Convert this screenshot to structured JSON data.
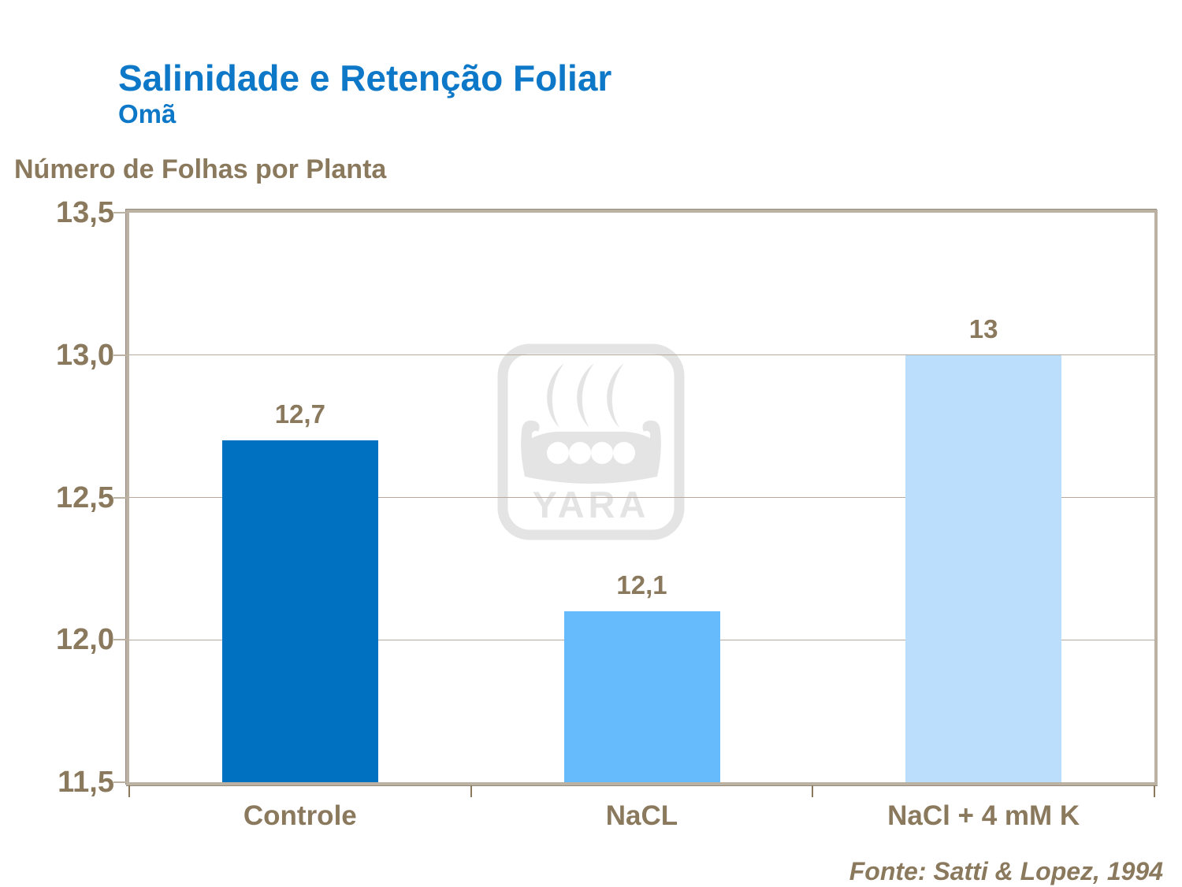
{
  "slide": {
    "title": "Salinidade e Retenção Foliar",
    "subtitle": "Omã",
    "source": "Fonte: Satti & Lopez, 1994"
  },
  "colors": {
    "title_blue": "#0d78c8",
    "text_brown": "#8a795d",
    "frame_tan": "#bcb2a4",
    "gridline_tan": "#b5aa9c",
    "watermark_gray": "#e4e4e4"
  },
  "watermark": {
    "icon": "yara-viking-ship-logo",
    "text": "YARA"
  },
  "chart_data": {
    "type": "bar",
    "title": "Salinidade e Retenção Foliar — Omã",
    "ylabel": "Número de Folhas por Planta",
    "xlabel": "",
    "categories": [
      "Controle",
      "NaCL",
      "NaCl + 4 mM K"
    ],
    "values": [
      12.7,
      12.1,
      13
    ],
    "value_labels": [
      "12,7",
      "12,1",
      "13"
    ],
    "bar_colors": [
      "#0070c0",
      "#66bbfc",
      "#bbdefd"
    ],
    "ylim": [
      11.5,
      13.5
    ],
    "yticks": [
      {
        "value": 11.5,
        "label": "11,5"
      },
      {
        "value": 12.0,
        "label": "12,0"
      },
      {
        "value": 12.5,
        "label": "12,5"
      },
      {
        "value": 13.0,
        "label": "13,0"
      },
      {
        "value": 13.5,
        "label": "13,5"
      }
    ],
    "grid": true,
    "legend": "none",
    "source": "Fonte: Satti & Lopez, 1994"
  }
}
